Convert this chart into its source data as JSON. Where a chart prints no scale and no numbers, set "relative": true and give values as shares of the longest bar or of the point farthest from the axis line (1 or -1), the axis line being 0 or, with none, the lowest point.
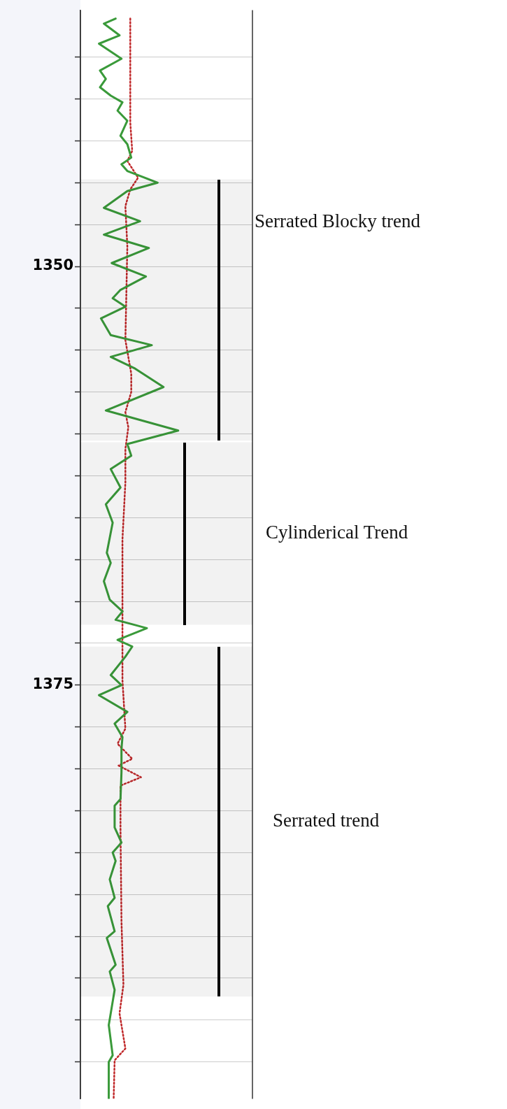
{
  "chart_data": {
    "type": "line",
    "orientation": "horizontal",
    "relative": true,
    "grid": true,
    "legend": false,
    "marker": "none",
    "tick_labels": "y",
    "ylim": [
      1399.7,
      1334.7
    ],
    "yticks": [
      {
        "value": 1337.5,
        "label": null
      },
      {
        "value": 1340,
        "label": null
      },
      {
        "value": 1342.5,
        "label": null
      },
      {
        "value": 1345,
        "label": null
      },
      {
        "value": 1347.5,
        "label": null
      },
      1350,
      {
        "value": 1352.5,
        "label": null
      },
      {
        "value": 1355,
        "label": null
      },
      {
        "value": 1357.5,
        "label": null
      },
      {
        "value": 1360,
        "label": null
      },
      {
        "value": 1362.5,
        "label": null
      },
      {
        "value": 1365,
        "label": null
      },
      {
        "value": 1367.5,
        "label": null
      },
      {
        "value": 1370,
        "label": null
      },
      {
        "value": 1372.5,
        "label": null
      },
      1375,
      {
        "value": 1377.5,
        "label": null
      },
      {
        "value": 1380,
        "label": null
      },
      {
        "value": 1382.5,
        "label": null
      },
      {
        "value": 1385,
        "label": null
      },
      {
        "value": 1387.5,
        "label": null
      },
      {
        "value": 1390,
        "label": null
      },
      {
        "value": 1392.5,
        "label": null
      },
      {
        "value": 1395,
        "label": null
      },
      {
        "value": 1397.5,
        "label": null
      }
    ],
    "series": [
      {
        "color": "#3a9a3a",
        "line_style": "solid",
        "values": [
          0.36,
          0.24,
          0.4,
          0.19,
          0.42,
          0.2,
          0.26,
          0.2,
          0.31,
          0.43,
          0.38,
          0.48,
          0.41,
          0.48,
          0.52,
          0.42,
          0.48,
          0.79,
          0.48,
          0.24,
          0.61,
          0.24,
          0.7,
          0.32,
          0.67,
          0.41,
          0.33,
          0.46,
          0.21,
          0.31,
          0.73,
          0.31,
          0.56,
          0.85,
          0.26,
          1,
          0.48,
          0.52,
          0.31,
          0.41,
          0.26,
          0.33,
          0.27,
          0.31,
          0.24,
          0.3,
          0.43,
          0.36,
          0.68,
          0.38,
          0.53,
          0.46,
          0.31,
          0.42,
          0.19,
          0.48,
          0.35,
          0.43,
          0.42,
          0.42,
          0.41,
          0.35,
          0.35,
          0.42,
          0.33,
          0.36,
          0.3,
          0.35,
          0.28,
          0.35,
          0.27,
          0.36,
          0.3,
          0.35,
          0.29,
          0.33,
          0.29,
          0.29
        ],
        "x": [
          1335.2,
          1335.5,
          1336.2,
          1336.7,
          1337.6,
          1338.3,
          1338.8,
          1339.3,
          1339.8,
          1340.2,
          1340.7,
          1341.3,
          1342.2,
          1342.7,
          1343.5,
          1343.9,
          1344.3,
          1345,
          1345.5,
          1346.5,
          1347.3,
          1348.1,
          1348.9,
          1349.8,
          1350.6,
          1351.4,
          1351.9,
          1352.4,
          1353.1,
          1354.1,
          1354.7,
          1355.4,
          1356.1,
          1357.2,
          1358.6,
          1359.8,
          1360.6,
          1361.3,
          1362.1,
          1363.2,
          1364.2,
          1365.3,
          1367.1,
          1367.7,
          1368.8,
          1369.9,
          1370.6,
          1371.1,
          1371.6,
          1372.3,
          1372.7,
          1373.3,
          1374.4,
          1375,
          1375.6,
          1376.6,
          1377.3,
          1378.1,
          1378.8,
          1380.2,
          1381.8,
          1382.2,
          1383.5,
          1384.4,
          1385,
          1385.5,
          1386.6,
          1387.7,
          1388.2,
          1389.7,
          1390.1,
          1391.7,
          1392.1,
          1393.2,
          1395.3,
          1397.1,
          1397.5,
          1399.7
        ]
      },
      {
        "color": "#c0282a",
        "line_style": "dotted",
        "values": [
          0.51,
          0.51,
          0.53,
          0.48,
          0.59,
          0.51,
          0.46,
          0.48,
          0.47,
          0.46,
          0.52,
          0.52,
          0.46,
          0.49,
          0.46,
          0.46,
          0.43,
          0.43,
          0.43,
          0.46,
          0.38,
          0.53,
          0.39,
          0.62,
          0.41,
          0.41,
          0.42,
          0.44,
          0.4,
          0.46,
          0.35,
          0.34
        ],
        "x": [
          1335.2,
          1341.4,
          1343.1,
          1343.7,
          1344.7,
          1345.4,
          1346.4,
          1348.8,
          1351.6,
          1354.4,
          1356.4,
          1357.5,
          1358.7,
          1359.6,
          1360.9,
          1362.9,
          1366.3,
          1370.5,
          1374.7,
          1377.6,
          1378.5,
          1379.4,
          1379.8,
          1380.5,
          1381,
          1383.6,
          1389.1,
          1392.9,
          1394.6,
          1396.7,
          1397.4,
          1399.7
        ]
      }
    ],
    "bands": [
      {
        "axis": "y",
        "from": 1344.8,
        "to": 1360.4,
        "label": "Serrated Blocky trend",
        "color": "#000000"
      },
      {
        "axis": "y",
        "from": 1360.5,
        "to": 1371.4,
        "label": "Cylinderical Trend",
        "color": "#000000"
      },
      {
        "axis": "y",
        "from": 1372.7,
        "to": 1393.6,
        "label": "Serrated trend",
        "color": "#000000"
      }
    ]
  }
}
